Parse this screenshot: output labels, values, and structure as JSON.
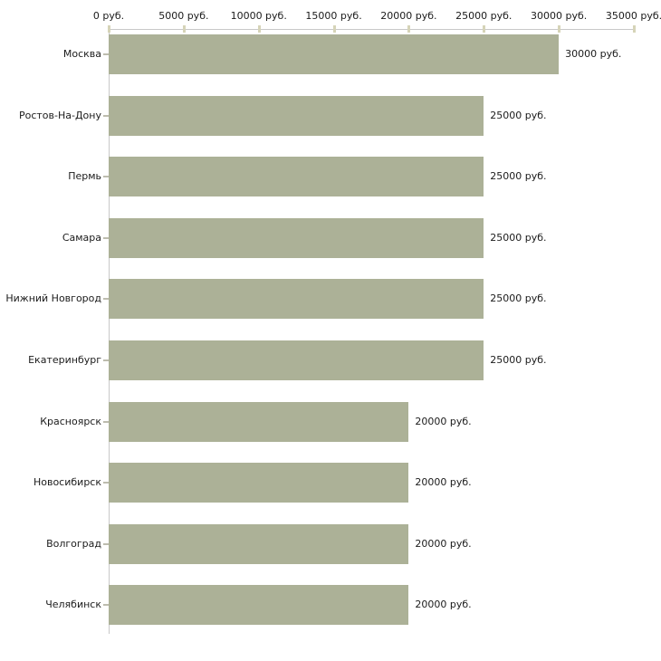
{
  "chart_data": {
    "type": "bar",
    "orientation": "horizontal",
    "title": "",
    "xlabel": "",
    "ylabel": "",
    "xlim": [
      0,
      35000
    ],
    "axis_position": "top",
    "grid": false,
    "legend": false,
    "categories": [
      "Москва",
      "Ростов-На-Дону",
      "Пермь",
      "Самара",
      "Нижний Новгород",
      "Екатеринбург",
      "Красноярск",
      "Новосибирск",
      "Волгоград",
      "Челябинск"
    ],
    "values": [
      30000,
      25000,
      25000,
      25000,
      25000,
      25000,
      20000,
      20000,
      20000,
      20000
    ],
    "value_labels": [
      "30000 руб.",
      "25000 руб.",
      "25000 руб.",
      "25000 руб.",
      "25000 руб.",
      "25000 руб.",
      "20000 руб.",
      "20000 руб.",
      "20000 руб.",
      "20000 руб."
    ],
    "x_ticks": [
      0,
      5000,
      10000,
      15000,
      20000,
      25000,
      30000,
      35000
    ],
    "x_tick_labels": [
      "0 руб.",
      "5000 руб.",
      "10000 руб.",
      "15000 руб.",
      "20000 руб.",
      "25000 руб.",
      "30000 руб.",
      "35000 руб."
    ],
    "colors": {
      "bar_fill": "#acb197",
      "axis_line": "#c8c8c8",
      "tick_mark": "#d6d4b8",
      "category_tick": "#bdbcae",
      "text": "#1b1b1b",
      "background": "#ffffff"
    }
  }
}
